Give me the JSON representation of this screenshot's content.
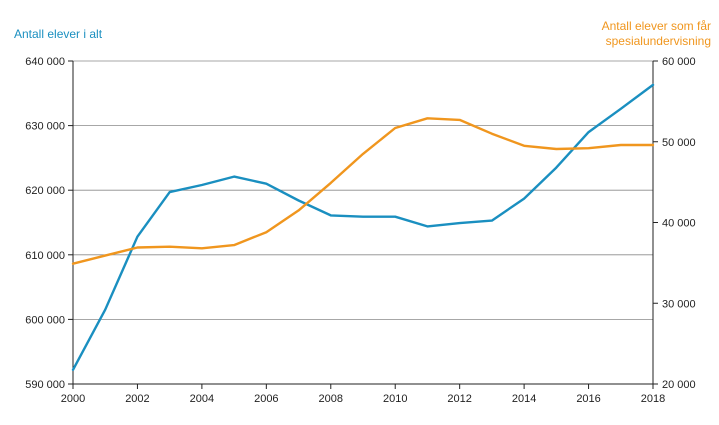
{
  "chart_data": {
    "type": "line",
    "x": [
      2000,
      2001,
      2002,
      2003,
      2004,
      2005,
      2006,
      2007,
      2008,
      2009,
      2010,
      2011,
      2012,
      2013,
      2014,
      2015,
      2016,
      2017,
      2018
    ],
    "xticks": [
      "2000",
      "2002",
      "2004",
      "2006",
      "2008",
      "2010",
      "2012",
      "2014",
      "2016",
      "2018"
    ],
    "xlim": [
      2000,
      2018
    ],
    "y_left": {
      "label": "Antall elever i alt",
      "lim": [
        590000,
        640000
      ],
      "ticks": [
        "590 000",
        "600 000",
        "610 000",
        "620 000",
        "630 000",
        "640 000"
      ],
      "tick_values": [
        590000,
        600000,
        610000,
        620000,
        630000,
        640000
      ]
    },
    "y_right": {
      "label_lines": [
        "Antall elever som får",
        "spesialundervisning"
      ],
      "lim": [
        20000,
        60000
      ],
      "ticks": [
        "20 000",
        "30 000",
        "40 000",
        "50 000",
        "60 000"
      ],
      "tick_values": [
        20000,
        30000,
        40000,
        50000,
        60000
      ]
    },
    "grid": true,
    "series": [
      {
        "name": "Antall elever i alt",
        "axis": "left",
        "color": "#1a8fc0",
        "values": [
          592200,
          601500,
          612800,
          619700,
          620800,
          622100,
          621000,
          618400,
          616100,
          615900,
          615900,
          614400,
          614900,
          615300,
          618700,
          623500,
          629000,
          632600,
          636300
        ]
      },
      {
        "name": "Antall elever som får spesialundervisning",
        "axis": "right",
        "color": "#f0961e",
        "values": [
          34900,
          35900,
          36900,
          37000,
          36800,
          37200,
          38800,
          41500,
          44900,
          48500,
          51700,
          52900,
          52700,
          51000,
          49500,
          49100,
          49200,
          49600,
          49600
        ]
      }
    ]
  }
}
